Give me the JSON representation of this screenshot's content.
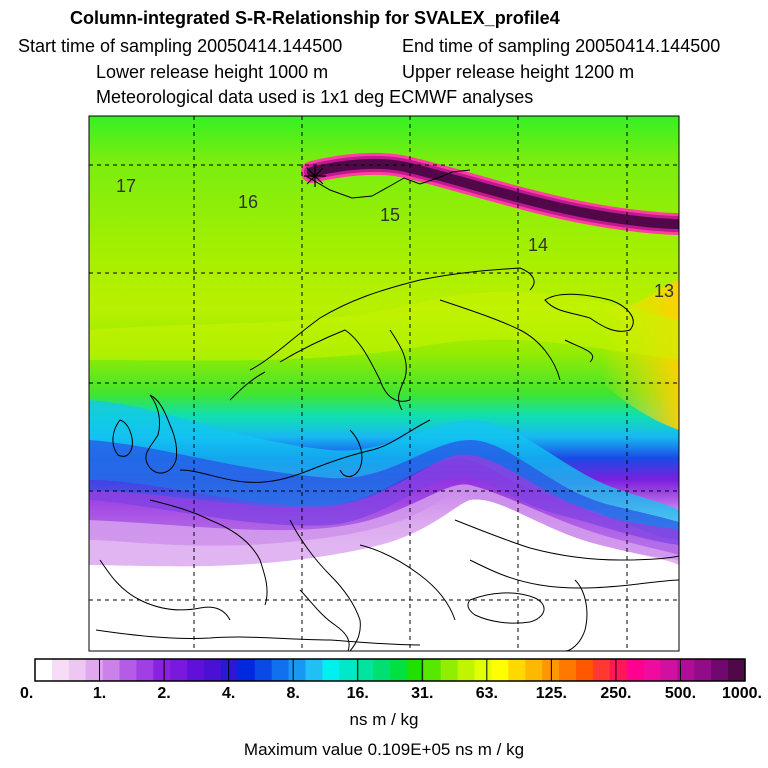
{
  "title": "Column-integrated S-R-Relationship for SVALEX_profile4",
  "info": {
    "start": "Start time of sampling 20050414.144500",
    "end": "End time of sampling 20050414.144500",
    "lower": "Lower release height 1000 m",
    "upper": "Upper release height 1200 m",
    "met": "Meteorological data used is 1x1 deg ECMWF analyses"
  },
  "map": {
    "contour_labels": [
      "17",
      "16",
      "15",
      "14",
      "13"
    ]
  },
  "colorbar": {
    "tick_labels": [
      "0.",
      "1.",
      "2.",
      "4.",
      "8.",
      "16.",
      "31.",
      "63.",
      "125.",
      "250.",
      "500.",
      "1000."
    ],
    "units": "ns m / kg",
    "colors": [
      "#ffffff",
      "#f6dcf6",
      "#eec6f2",
      "#e0a8ee",
      "#cc80ea",
      "#b45ce6",
      "#a040e4",
      "#8a20e0",
      "#7a18de",
      "#6010d8",
      "#4a10d4",
      "#2a18d8",
      "#0028e0",
      "#0a48e8",
      "#1070ee",
      "#1898f2",
      "#20c0f4",
      "#00f0f0",
      "#00e8c8",
      "#00e4a0",
      "#00e070",
      "#00e040",
      "#20e000",
      "#58e800",
      "#90ee00",
      "#c0f400",
      "#e0ff00",
      "#ffff00",
      "#ffd800",
      "#ffb800",
      "#ff9800",
      "#ff7800",
      "#ff5800",
      "#ff3830",
      "#ff1858",
      "#ff0090",
      "#f00aa0",
      "#d010a0",
      "#b00c98",
      "#900c88",
      "#700870",
      "#500848"
    ]
  },
  "max_value": "Maximum value  0.109E+05 ns m / kg"
}
